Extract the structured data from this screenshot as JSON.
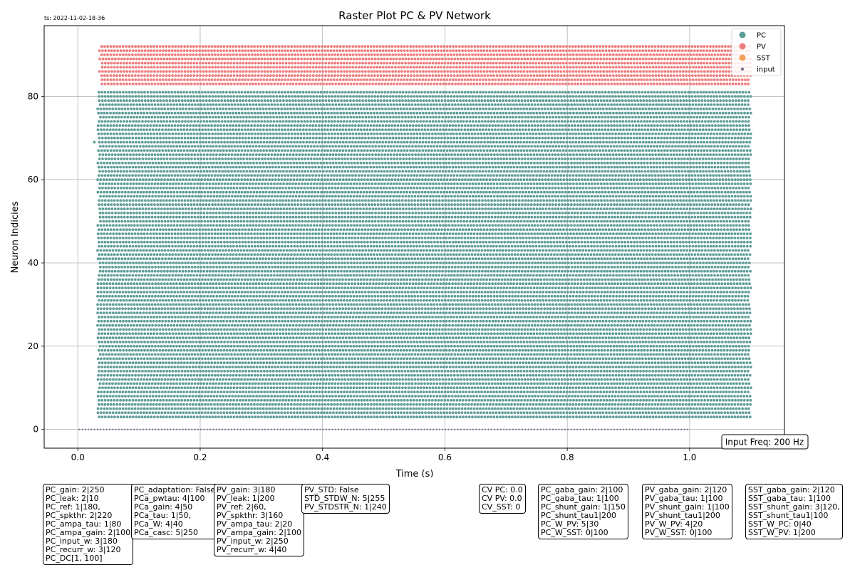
{
  "timestamp": "ts: 2022-11-02-18-36",
  "chart_data": {
    "type": "scatter",
    "title": "Raster Plot PC & PV Network",
    "xlabel": "Time (s)",
    "ylabel": "Neuron Indicies",
    "xlim": [
      -0.055,
      1.155
    ],
    "ylim": [
      -4.5,
      97
    ],
    "xticks": [
      "0.0",
      "0.2",
      "0.4",
      "0.6",
      "0.8",
      "1.0"
    ],
    "yticks": [
      "0",
      "20",
      "40",
      "60",
      "80"
    ],
    "grid": true,
    "legend_position": "top-right",
    "series": [
      {
        "name": "PC",
        "color": "#5f9e98",
        "neurons": [
          3,
          81
        ],
        "t_start": 0.032,
        "t_end": 1.1,
        "rate_hz": 200,
        "extra_points": [
          {
            "x": 0.027,
            "y": 69
          },
          {
            "x": 0.033,
            "y": 41
          }
        ]
      },
      {
        "name": "PV",
        "color": "#ee7d7d",
        "neurons": [
          83,
          92
        ],
        "t_start": 0.035,
        "t_end": 1.1,
        "rate_hz": 200
      },
      {
        "name": "SST",
        "color": "#f0a05a",
        "neurons": [],
        "t_start": 0,
        "t_end": 0,
        "rate_hz": 0
      },
      {
        "name": "input",
        "color": "#6a6a8a",
        "neurons": [
          0,
          0
        ],
        "t_start": 0.0,
        "t_end": 1.0,
        "rate_hz": 200
      }
    ]
  },
  "input_freq_label": "Input Freq: 200 Hz",
  "info_boxes": [
    {
      "lines": [
        "PC_gain: 2|250",
        "PC_leak: 2|10",
        "PC_ref: 1|180,",
        "PC_spkthr: 2|220",
        "PC_ampa_tau: 1|80",
        "PC_ampa_gain: 2|100",
        "PC_input_w: 3|180",
        "PC_recurr_w: 3|120",
        "PC_DC[1, 100]"
      ]
    },
    {
      "lines": [
        "PC_adaptation: False",
        "PCa_pwtau: 4|100",
        "PCa_gain: 4|50",
        "PCa_tau: 1|50,",
        "PCa_W: 4|40",
        "PCa_casc: 5|250"
      ]
    },
    {
      "lines": [
        "PV_gain: 3|180",
        "PV_leak: 1|200",
        "PV_ref: 2|60,",
        "PV_spkthr: 3|160",
        "PV_ampa_tau: 2|20",
        "PV_ampa_gain: 2|100",
        "PV_input_w: 2|250",
        "PV_recurr_w: 4|40"
      ]
    },
    {
      "lines": [
        "PV_STD: False",
        "STD_STDW_N: 5|255",
        "PV_STDSTR_N: 1|240"
      ]
    },
    {
      "lines": [
        "CV PC: 0.0",
        "CV PV: 0.0",
        "CV_SST: 0"
      ]
    },
    {
      "lines": [
        "PC_gaba_gain: 2|100",
        "PC_gaba_tau: 1|100",
        "PC_shunt_gain: 1|150",
        "PC_shunt_tau1|200",
        "PC_W_PV: 5|30",
        "PC_W_SST: 0|100"
      ]
    },
    {
      "lines": [
        "PV_gaba_gain: 2|120",
        "PV_gaba_tau: 1|100",
        "PV_shunt_gain: 1|100",
        "PV_shunt_tau1|200",
        "PV_W_PV: 4|20",
        "PV_W_SST: 0|100"
      ]
    },
    {
      "lines": [
        "SST_gaba_gain: 2|120",
        "SST_gaba_tau: 1|100",
        "SST_shunt_gain: 3|120,",
        "SST_shunt_tau1|100",
        "SST_W_PC: 0|40",
        "SST_W_PV: 1|200"
      ]
    }
  ]
}
